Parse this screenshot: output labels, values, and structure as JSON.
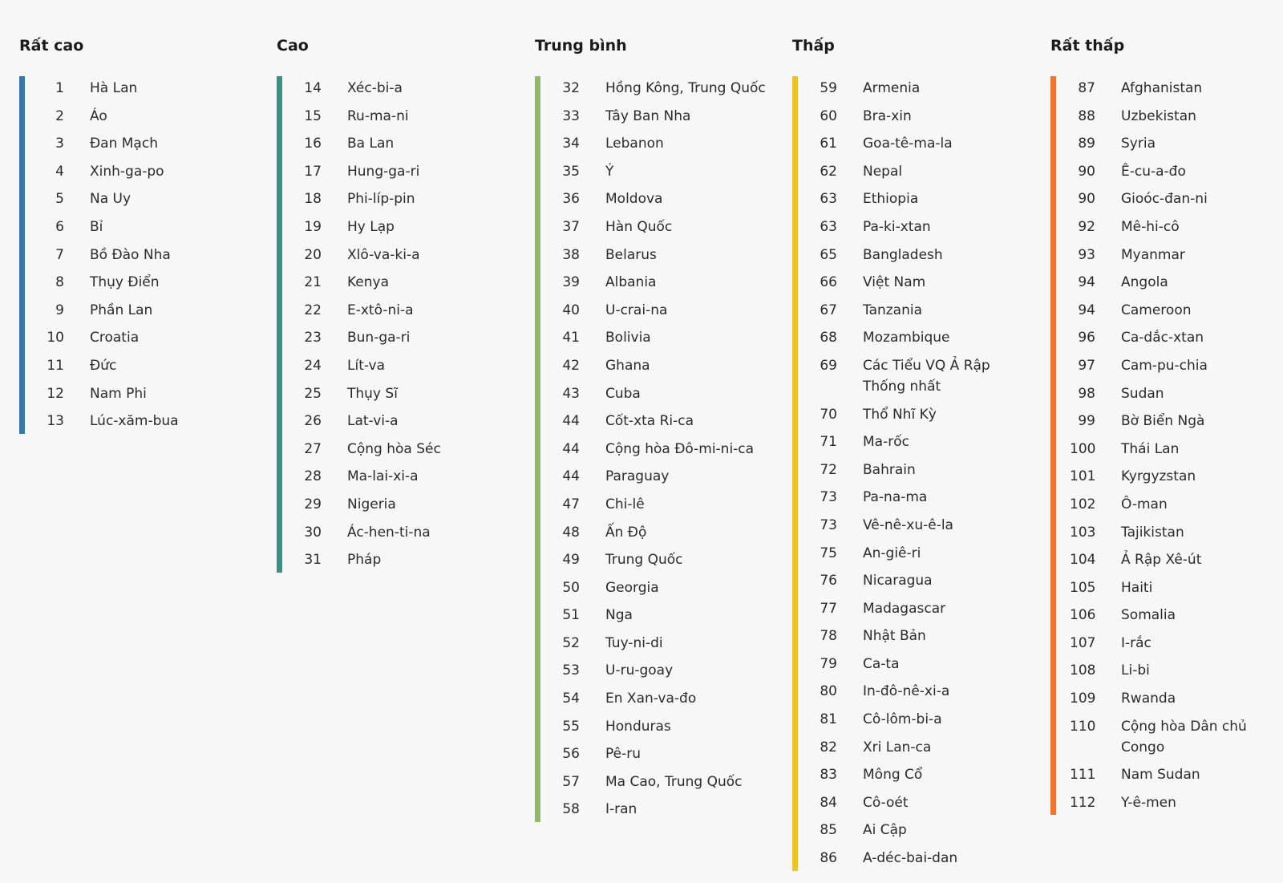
{
  "colors": {
    "very_high": "#3877a8",
    "high": "#3a8f86",
    "moderate": "#8fbb6a",
    "low": "#e9c22e",
    "very_low": "#ee7634"
  },
  "columns": [
    {
      "title": "Rất cao",
      "color_key": "very_high",
      "items": [
        {
          "rank": "1",
          "country": "Hà Lan"
        },
        {
          "rank": "2",
          "country": "Áo"
        },
        {
          "rank": "3",
          "country": "Đan Mạch"
        },
        {
          "rank": "4",
          "country": "Xinh-ga-po"
        },
        {
          "rank": "5",
          "country": "Na Uy"
        },
        {
          "rank": "6",
          "country": "Bỉ"
        },
        {
          "rank": "7",
          "country": "Bồ Đào Nha"
        },
        {
          "rank": "8",
          "country": "Thụy Điển"
        },
        {
          "rank": "9",
          "country": "Phần Lan"
        },
        {
          "rank": "10",
          "country": "Croatia"
        },
        {
          "rank": "11",
          "country": "Đức"
        },
        {
          "rank": "12",
          "country": "Nam Phi"
        },
        {
          "rank": "13",
          "country": "Lúc-xăm-bua"
        }
      ]
    },
    {
      "title": "Cao",
      "color_key": "high",
      "items": [
        {
          "rank": "14",
          "country": "Xéc-bi-a"
        },
        {
          "rank": "15",
          "country": "Ru-ma-ni"
        },
        {
          "rank": "16",
          "country": "Ba Lan"
        },
        {
          "rank": "17",
          "country": "Hung-ga-ri"
        },
        {
          "rank": "18",
          "country": "Phi-líp-pin"
        },
        {
          "rank": "19",
          "country": "Hy Lạp"
        },
        {
          "rank": "20",
          "country": "Xlô-va-ki-a"
        },
        {
          "rank": "21",
          "country": "Kenya"
        },
        {
          "rank": "22",
          "country": "E-xtô-ni-a"
        },
        {
          "rank": "23",
          "country": "Bun-ga-ri"
        },
        {
          "rank": "24",
          "country": "Lít-va"
        },
        {
          "rank": "25",
          "country": "Thụy Sĩ"
        },
        {
          "rank": "26",
          "country": "Lat-vi-a"
        },
        {
          "rank": "27",
          "country": "Cộng hòa Séc"
        },
        {
          "rank": "28",
          "country": "Ma-lai-xi-a"
        },
        {
          "rank": "29",
          "country": "Nigeria"
        },
        {
          "rank": "30",
          "country": "Ác-hen-ti-na"
        },
        {
          "rank": "31",
          "country": "Pháp"
        }
      ]
    },
    {
      "title": "Trung bình",
      "color_key": "moderate",
      "items": [
        {
          "rank": "32",
          "country": "Hồng Kông, Trung Quốc"
        },
        {
          "rank": "33",
          "country": "Tây Ban Nha"
        },
        {
          "rank": "34",
          "country": "Lebanon"
        },
        {
          "rank": "35",
          "country": "Ý"
        },
        {
          "rank": "36",
          "country": "Moldova"
        },
        {
          "rank": "37",
          "country": "Hàn Quốc"
        },
        {
          "rank": "38",
          "country": "Belarus"
        },
        {
          "rank": "39",
          "country": "Albania"
        },
        {
          "rank": "40",
          "country": "U-crai-na"
        },
        {
          "rank": "41",
          "country": "Bolivia"
        },
        {
          "rank": "42",
          "country": "Ghana"
        },
        {
          "rank": "43",
          "country": "Cuba"
        },
        {
          "rank": "44",
          "country": "Cốt-xta Ri-ca"
        },
        {
          "rank": "44",
          "country": "Cộng hòa Đô-mi-ni-ca"
        },
        {
          "rank": "44",
          "country": "Paraguay"
        },
        {
          "rank": "47",
          "country": "Chi-lê"
        },
        {
          "rank": "48",
          "country": "Ấn Độ"
        },
        {
          "rank": "49",
          "country": "Trung Quốc"
        },
        {
          "rank": "50",
          "country": "Georgia"
        },
        {
          "rank": "51",
          "country": "Nga"
        },
        {
          "rank": "52",
          "country": "Tuy-ni-di"
        },
        {
          "rank": "53",
          "country": "U-ru-goay"
        },
        {
          "rank": "54",
          "country": "En Xan-va-đo"
        },
        {
          "rank": "55",
          "country": "Honduras"
        },
        {
          "rank": "56",
          "country": "Pê-ru"
        },
        {
          "rank": "57",
          "country": "Ma Cao, Trung Quốc"
        },
        {
          "rank": "58",
          "country": "I-ran"
        }
      ]
    },
    {
      "title": "Thấp",
      "color_key": "low",
      "items": [
        {
          "rank": "59",
          "country": "Armenia"
        },
        {
          "rank": "60",
          "country": "Bra-xin"
        },
        {
          "rank": "61",
          "country": "Goa-tê-ma-la"
        },
        {
          "rank": "62",
          "country": "Nepal"
        },
        {
          "rank": "63",
          "country": "Ethiopia"
        },
        {
          "rank": "63",
          "country": "Pa-ki-xtan"
        },
        {
          "rank": "65",
          "country": "Bangladesh"
        },
        {
          "rank": "66",
          "country": "Việt Nam"
        },
        {
          "rank": "67",
          "country": "Tanzania"
        },
        {
          "rank": "68",
          "country": "Mozambique"
        },
        {
          "rank": "69",
          "country": "Các Tiểu VQ Ả Rập Thống nhất"
        },
        {
          "rank": "70",
          "country": "Thổ Nhĩ Kỳ"
        },
        {
          "rank": "71",
          "country": "Ma-rốc"
        },
        {
          "rank": "72",
          "country": "Bahrain"
        },
        {
          "rank": "73",
          "country": "Pa-na-ma"
        },
        {
          "rank": "73",
          "country": "Vê-nê-xu-ê-la"
        },
        {
          "rank": "75",
          "country": "An-giê-ri"
        },
        {
          "rank": "76",
          "country": "Nicaragua"
        },
        {
          "rank": "77",
          "country": "Madagascar"
        },
        {
          "rank": "78",
          "country": "Nhật Bản"
        },
        {
          "rank": "79",
          "country": "Ca-ta"
        },
        {
          "rank": "80",
          "country": "In-đô-nê-xi-a"
        },
        {
          "rank": "81",
          "country": "Cô-lôm-bi-a"
        },
        {
          "rank": "82",
          "country": "Xri Lan-ca"
        },
        {
          "rank": "83",
          "country": "Mông Cổ"
        },
        {
          "rank": "84",
          "country": "Cô-oét"
        },
        {
          "rank": "85",
          "country": "Ai Cập"
        },
        {
          "rank": "86",
          "country": "A-déc-bai-dan"
        }
      ]
    },
    {
      "title": "Rất thấp",
      "color_key": "very_low",
      "items": [
        {
          "rank": "87",
          "country": "Afghanistan"
        },
        {
          "rank": "88",
          "country": "Uzbekistan"
        },
        {
          "rank": "89",
          "country": "Syria"
        },
        {
          "rank": "90",
          "country": "Ê-cu-a-đo"
        },
        {
          "rank": "90",
          "country": "Gioóc-đan-ni"
        },
        {
          "rank": "92",
          "country": "Mê-hi-cô"
        },
        {
          "rank": "93",
          "country": "Myanmar"
        },
        {
          "rank": "94",
          "country": "Angola"
        },
        {
          "rank": "94",
          "country": "Cameroon"
        },
        {
          "rank": "96",
          "country": "Ca-dắc-xtan"
        },
        {
          "rank": "97",
          "country": "Cam-pu-chia"
        },
        {
          "rank": "98",
          "country": "Sudan"
        },
        {
          "rank": "99",
          "country": "Bờ Biển Ngà"
        },
        {
          "rank": "100",
          "country": "Thái Lan"
        },
        {
          "rank": "101",
          "country": "Kyrgyzstan"
        },
        {
          "rank": "102",
          "country": "Ô-man"
        },
        {
          "rank": "103",
          "country": "Tajikistan"
        },
        {
          "rank": "104",
          "country": "Ả Rập Xê-út"
        },
        {
          "rank": "105",
          "country": "Haiti"
        },
        {
          "rank": "106",
          "country": "Somalia"
        },
        {
          "rank": "107",
          "country": "I-rắc"
        },
        {
          "rank": "108",
          "country": "Li-bi"
        },
        {
          "rank": "109",
          "country": "Rwanda"
        },
        {
          "rank": "110",
          "country": "Cộng hòa Dân chủ Congo"
        },
        {
          "rank": "111",
          "country": "Nam Sudan"
        },
        {
          "rank": "112",
          "country": "Y-ê-men"
        }
      ]
    }
  ]
}
